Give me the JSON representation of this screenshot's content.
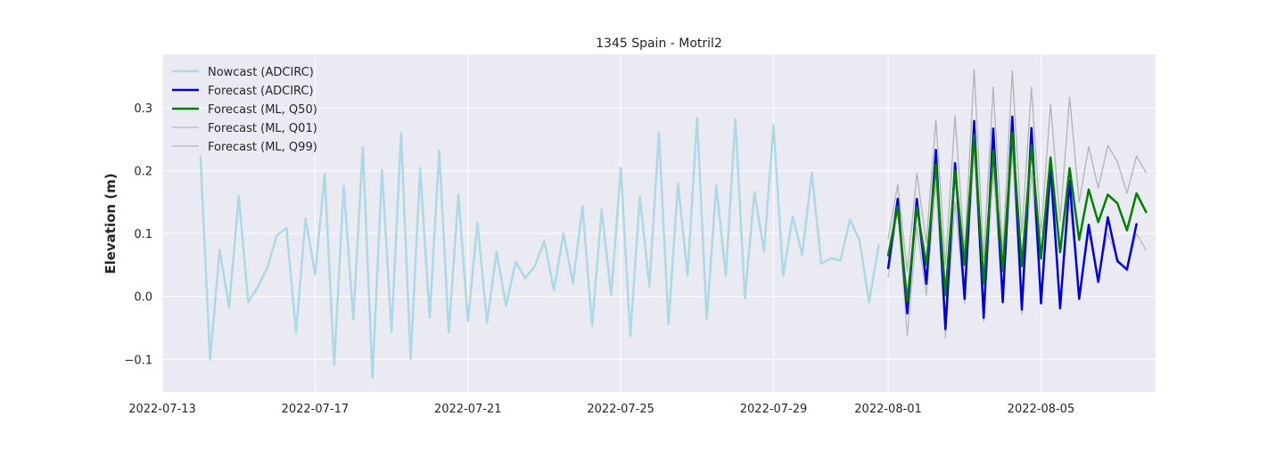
{
  "chart_data": {
    "type": "line",
    "title": "1345 Spain - Motril2",
    "xlabel": "",
    "ylabel": "Elevation (m)",
    "x_type": "date",
    "xlim": [
      "2022-07-13",
      "2022-08-08T00:00"
    ],
    "ylim": [
      -0.152,
      0.385
    ],
    "grid": true,
    "legend_placement": "top-left",
    "x_ticks": [
      "2022-07-13",
      "2022-07-17",
      "2022-07-21",
      "2022-07-25",
      "2022-07-29",
      "2022-08-01",
      "2022-08-05"
    ],
    "y_ticks": [
      -0.1,
      0.0,
      0.1,
      0.2,
      0.3
    ],
    "series": [
      {
        "name": "Nowcast (ADCIRC)",
        "color": "#add8e6",
        "width": 2.5,
        "points": [
          [
            "2022-07-14T00:00",
            0.222
          ],
          [
            "2022-07-14T06:00",
            -0.101
          ],
          [
            "2022-07-14T12:00",
            0.074
          ],
          [
            "2022-07-14T18:00",
            -0.017
          ],
          [
            "2022-07-15T00:00",
            0.16
          ],
          [
            "2022-07-15T06:00",
            -0.009
          ],
          [
            "2022-07-15T12:00",
            0.015
          ],
          [
            "2022-07-15T18:00",
            0.046
          ],
          [
            "2022-07-16T00:00",
            0.097
          ],
          [
            "2022-07-16T06:00",
            0.109
          ],
          [
            "2022-07-16T12:00",
            -0.058
          ],
          [
            "2022-07-16T18:00",
            0.124
          ],
          [
            "2022-07-17T00:00",
            0.035
          ],
          [
            "2022-07-17T06:00",
            0.194
          ],
          [
            "2022-07-17T12:00",
            -0.109
          ],
          [
            "2022-07-17T18:00",
            0.176
          ],
          [
            "2022-07-18T00:00",
            -0.036
          ],
          [
            "2022-07-18T06:00",
            0.237
          ],
          [
            "2022-07-18T12:00",
            -0.129
          ],
          [
            "2022-07-18T18:00",
            0.201
          ],
          [
            "2022-07-19T00:00",
            -0.057
          ],
          [
            "2022-07-19T06:00",
            0.26
          ],
          [
            "2022-07-19T12:00",
            -0.1
          ],
          [
            "2022-07-19T18:00",
            0.204
          ],
          [
            "2022-07-20T00:00",
            -0.034
          ],
          [
            "2022-07-20T06:00",
            0.232
          ],
          [
            "2022-07-20T12:00",
            -0.057
          ],
          [
            "2022-07-20T18:00",
            0.162
          ],
          [
            "2022-07-21T00:00",
            -0.039
          ],
          [
            "2022-07-21T06:00",
            0.117
          ],
          [
            "2022-07-21T12:00",
            -0.042
          ],
          [
            "2022-07-21T18:00",
            0.071
          ],
          [
            "2022-07-22T00:00",
            -0.015
          ],
          [
            "2022-07-22T06:00",
            0.055
          ],
          [
            "2022-07-22T12:00",
            0.029
          ],
          [
            "2022-07-22T18:00",
            0.048
          ],
          [
            "2022-07-23T00:00",
            0.088
          ],
          [
            "2022-07-23T06:00",
            0.01
          ],
          [
            "2022-07-23T12:00",
            0.1
          ],
          [
            "2022-07-23T18:00",
            0.021
          ],
          [
            "2022-07-24T00:00",
            0.144
          ],
          [
            "2022-07-24T06:00",
            -0.047
          ],
          [
            "2022-07-24T12:00",
            0.138
          ],
          [
            "2022-07-24T18:00",
            0.002
          ],
          [
            "2022-07-25T00:00",
            0.204
          ],
          [
            "2022-07-25T06:00",
            -0.063
          ],
          [
            "2022-07-25T12:00",
            0.159
          ],
          [
            "2022-07-25T18:00",
            0.016
          ],
          [
            "2022-07-26T00:00",
            0.261
          ],
          [
            "2022-07-26T06:00",
            -0.044
          ],
          [
            "2022-07-26T12:00",
            0.18
          ],
          [
            "2022-07-26T18:00",
            0.033
          ],
          [
            "2022-07-27T00:00",
            0.284
          ],
          [
            "2022-07-27T06:00",
            -0.037
          ],
          [
            "2022-07-27T12:00",
            0.176
          ],
          [
            "2022-07-27T18:00",
            0.033
          ],
          [
            "2022-07-28T00:00",
            0.282
          ],
          [
            "2022-07-28T06:00",
            -0.003
          ],
          [
            "2022-07-28T12:00",
            0.166
          ],
          [
            "2022-07-28T18:00",
            0.072
          ],
          [
            "2022-07-29T00:00",
            0.272
          ],
          [
            "2022-07-29T06:00",
            0.033
          ],
          [
            "2022-07-29T12:00",
            0.127
          ],
          [
            "2022-07-29T18:00",
            0.066
          ],
          [
            "2022-07-30T00:00",
            0.197
          ],
          [
            "2022-07-30T06:00",
            0.052
          ],
          [
            "2022-07-30T12:00",
            0.061
          ],
          [
            "2022-07-30T18:00",
            0.057
          ],
          [
            "2022-07-31T00:00",
            0.122
          ],
          [
            "2022-07-31T06:00",
            0.09
          ],
          [
            "2022-07-31T12:00",
            -0.009
          ],
          [
            "2022-07-31T18:00",
            0.081
          ]
        ]
      },
      {
        "name": "Forecast (ML, Q01)",
        "color": "#bbbbbb",
        "width": 1.3,
        "points": [
          [
            "2022-08-01T00:00",
            0.03
          ],
          [
            "2022-08-01T06:00",
            0.14
          ],
          [
            "2022-08-01T12:00",
            -0.063
          ],
          [
            "2022-08-01T18:00",
            0.11
          ],
          [
            "2022-08-02T00:00",
            0.001
          ],
          [
            "2022-08-02T06:00",
            0.18
          ],
          [
            "2022-08-02T12:00",
            -0.066
          ],
          [
            "2022-08-02T18:00",
            0.15
          ],
          [
            "2022-08-03T00:00",
            -0.012
          ],
          [
            "2022-08-03T06:00",
            0.23
          ],
          [
            "2022-08-03T12:00",
            -0.04
          ],
          [
            "2022-08-03T18:00",
            0.2
          ],
          [
            "2022-08-04T00:00",
            -0.012
          ],
          [
            "2022-08-04T06:00",
            0.23
          ],
          [
            "2022-08-04T12:00",
            -0.028
          ],
          [
            "2022-08-04T18:00",
            0.2
          ],
          [
            "2022-08-05T00:00",
            -0.005
          ],
          [
            "2022-08-05T06:00",
            0.18
          ],
          [
            "2022-08-05T12:00",
            -0.015
          ],
          [
            "2022-08-05T18:00",
            0.15
          ],
          [
            "2022-08-06T00:00",
            0.0
          ],
          [
            "2022-08-06T06:00",
            0.1
          ],
          [
            "2022-08-06T12:00",
            0.03
          ],
          [
            "2022-08-06T18:00",
            0.1
          ],
          [
            "2022-08-07T00:00",
            0.06
          ],
          [
            "2022-08-07T06:00",
            0.04
          ],
          [
            "2022-08-07T12:00",
            0.1
          ],
          [
            "2022-08-07T18:00",
            0.074
          ]
        ]
      },
      {
        "name": "Forecast (ML, Q99)",
        "color": "#b3b3b3",
        "width": 1.3,
        "points": [
          [
            "2022-08-01T00:00",
            0.092
          ],
          [
            "2022-08-01T06:00",
            0.178
          ],
          [
            "2022-08-01T12:00",
            0.04
          ],
          [
            "2022-08-01T18:00",
            0.196
          ],
          [
            "2022-08-02T00:00",
            0.085
          ],
          [
            "2022-08-02T06:00",
            0.281
          ],
          [
            "2022-08-02T12:00",
            0.05
          ],
          [
            "2022-08-02T18:00",
            0.287
          ],
          [
            "2022-08-03T00:00",
            0.07
          ],
          [
            "2022-08-03T06:00",
            0.361
          ],
          [
            "2022-08-03T12:00",
            0.06
          ],
          [
            "2022-08-03T18:00",
            0.333
          ],
          [
            "2022-08-04T00:00",
            0.07
          ],
          [
            "2022-08-04T06:00",
            0.359
          ],
          [
            "2022-08-04T12:00",
            0.1
          ],
          [
            "2022-08-04T18:00",
            0.333
          ],
          [
            "2022-08-05T00:00",
            0.1
          ],
          [
            "2022-08-05T06:00",
            0.306
          ],
          [
            "2022-08-05T12:00",
            0.12
          ],
          [
            "2022-08-05T18:00",
            0.317
          ],
          [
            "2022-08-06T00:00",
            0.15
          ],
          [
            "2022-08-06T06:00",
            0.238
          ],
          [
            "2022-08-06T12:00",
            0.172
          ],
          [
            "2022-08-06T18:00",
            0.24
          ],
          [
            "2022-08-07T00:00",
            0.214
          ],
          [
            "2022-08-07T06:00",
            0.164
          ],
          [
            "2022-08-07T12:00",
            0.223
          ],
          [
            "2022-08-07T18:00",
            0.197
          ]
        ]
      },
      {
        "name": "Forecast (ADCIRC)",
        "color": "#0000dd",
        "width": 2.5,
        "points": [
          [
            "2022-08-01T00:00",
            0.045
          ],
          [
            "2022-08-01T06:00",
            0.155
          ],
          [
            "2022-08-01T12:00",
            -0.027
          ],
          [
            "2022-08-01T18:00",
            0.155
          ],
          [
            "2022-08-02T00:00",
            0.02
          ],
          [
            "2022-08-02T06:00",
            0.233
          ],
          [
            "2022-08-02T12:00",
            -0.052
          ],
          [
            "2022-08-02T18:00",
            0.212
          ],
          [
            "2022-08-03T00:00",
            -0.004
          ],
          [
            "2022-08-03T06:00",
            0.279
          ],
          [
            "2022-08-03T12:00",
            -0.034
          ],
          [
            "2022-08-03T18:00",
            0.267
          ],
          [
            "2022-08-04T00:00",
            -0.009
          ],
          [
            "2022-08-04T06:00",
            0.286
          ],
          [
            "2022-08-04T12:00",
            -0.021
          ],
          [
            "2022-08-04T18:00",
            0.268
          ],
          [
            "2022-08-05T00:00",
            -0.011
          ],
          [
            "2022-08-05T06:00",
            0.209
          ],
          [
            "2022-08-05T12:00",
            -0.019
          ],
          [
            "2022-08-05T18:00",
            0.184
          ],
          [
            "2022-08-06T00:00",
            -0.004
          ],
          [
            "2022-08-06T06:00",
            0.114
          ],
          [
            "2022-08-06T12:00",
            0.023
          ],
          [
            "2022-08-06T18:00",
            0.126
          ],
          [
            "2022-08-07T00:00",
            0.056
          ],
          [
            "2022-08-07T06:00",
            0.043
          ],
          [
            "2022-08-07T12:00",
            0.115
          ]
        ]
      },
      {
        "name": "Forecast (ML, Q50)",
        "color": "#008000",
        "width": 2.5,
        "points": [
          [
            "2022-08-01T00:00",
            0.065
          ],
          [
            "2022-08-01T06:00",
            0.143
          ],
          [
            "2022-08-01T12:00",
            -0.008
          ],
          [
            "2022-08-01T18:00",
            0.142
          ],
          [
            "2022-08-02T00:00",
            0.05
          ],
          [
            "2022-08-02T06:00",
            0.21
          ],
          [
            "2022-08-02T12:00",
            0.002
          ],
          [
            "2022-08-02T18:00",
            0.2
          ],
          [
            "2022-08-03T00:00",
            0.05
          ],
          [
            "2022-08-03T06:00",
            0.257
          ],
          [
            "2022-08-03T12:00",
            0.02
          ],
          [
            "2022-08-03T18:00",
            0.232
          ],
          [
            "2022-08-04T00:00",
            0.04
          ],
          [
            "2022-08-04T06:00",
            0.26
          ],
          [
            "2022-08-04T12:00",
            0.048
          ],
          [
            "2022-08-04T18:00",
            0.24
          ],
          [
            "2022-08-05T00:00",
            0.06
          ],
          [
            "2022-08-05T06:00",
            0.221
          ],
          [
            "2022-08-05T12:00",
            0.07
          ],
          [
            "2022-08-05T18:00",
            0.204
          ],
          [
            "2022-08-06T00:00",
            0.09
          ],
          [
            "2022-08-06T06:00",
            0.17
          ],
          [
            "2022-08-06T12:00",
            0.118
          ],
          [
            "2022-08-06T18:00",
            0.162
          ],
          [
            "2022-08-07T00:00",
            0.148
          ],
          [
            "2022-08-07T06:00",
            0.105
          ],
          [
            "2022-08-07T12:00",
            0.164
          ],
          [
            "2022-08-07T18:00",
            0.134
          ]
        ]
      }
    ],
    "legend": [
      {
        "label": "Nowcast (ADCIRC)",
        "color": "#add8e6",
        "width": 2.5
      },
      {
        "label": "Forecast (ADCIRC)",
        "color": "#0000dd",
        "width": 2.5
      },
      {
        "label": "Forecast (ML, Q50)",
        "color": "#008000",
        "width": 2.5
      },
      {
        "label": "Forecast (ML, Q01)",
        "color": "#bbbbbb",
        "width": 1.3
      },
      {
        "label": "Forecast (ML, Q99)",
        "color": "#b3b3b3",
        "width": 1.3
      }
    ],
    "colors": {
      "plot_background": "#eaeaf2",
      "grid": "#ffffff",
      "text": "#262626"
    }
  }
}
